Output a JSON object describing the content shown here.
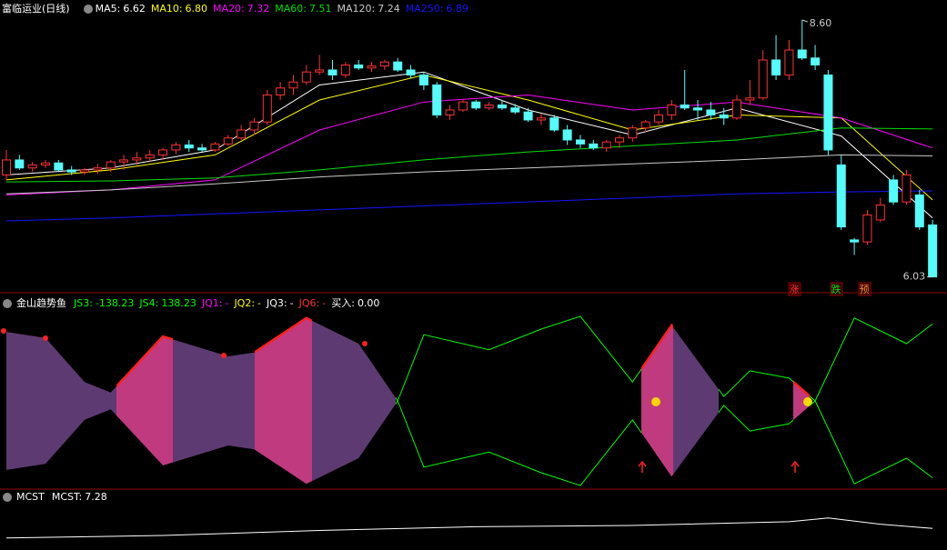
{
  "chart_data": [
    {
      "type": "candlestick",
      "title": "富临运业(日线)",
      "ylim": [
        5.89,
        8.8
      ],
      "up_color": "#ff3232",
      "down_color": "#54fcfc",
      "candles": [
        [
          7.05,
          7.3,
          7.0,
          7.2
        ],
        [
          7.2,
          7.25,
          7.1,
          7.12
        ],
        [
          7.12,
          7.18,
          7.08,
          7.15
        ],
        [
          7.15,
          7.2,
          7.12,
          7.17
        ],
        [
          7.17,
          7.2,
          7.08,
          7.1
        ],
        [
          7.1,
          7.14,
          7.05,
          7.08
        ],
        [
          7.08,
          7.12,
          7.05,
          7.1
        ],
        [
          7.1,
          7.16,
          7.06,
          7.12
        ],
        [
          7.12,
          7.2,
          7.08,
          7.18
        ],
        [
          7.18,
          7.25,
          7.1,
          7.2
        ],
        [
          7.2,
          7.28,
          7.15,
          7.22
        ],
        [
          7.22,
          7.3,
          7.18,
          7.25
        ],
        [
          7.25,
          7.32,
          7.2,
          7.3
        ],
        [
          7.3,
          7.38,
          7.26,
          7.35
        ],
        [
          7.35,
          7.4,
          7.28,
          7.32
        ],
        [
          7.32,
          7.36,
          7.28,
          7.3
        ],
        [
          7.3,
          7.38,
          7.28,
          7.36
        ],
        [
          7.36,
          7.45,
          7.34,
          7.42
        ],
        [
          7.42,
          7.55,
          7.4,
          7.5
        ],
        [
          7.5,
          7.62,
          7.45,
          7.58
        ],
        [
          7.58,
          7.9,
          7.55,
          7.85
        ],
        [
          7.85,
          7.98,
          7.8,
          7.92
        ],
        [
          7.92,
          8.05,
          7.85,
          7.98
        ],
        [
          7.98,
          8.15,
          7.95,
          8.08
        ],
        [
          8.08,
          8.25,
          8.05,
          8.1
        ],
        [
          8.1,
          8.2,
          8.0,
          8.05
        ],
        [
          8.05,
          8.18,
          8.02,
          8.15
        ],
        [
          8.15,
          8.2,
          8.1,
          8.12
        ],
        [
          8.12,
          8.18,
          8.08,
          8.14
        ],
        [
          8.14,
          8.2,
          8.1,
          8.18
        ],
        [
          8.18,
          8.22,
          8.08,
          8.1
        ],
        [
          8.1,
          8.15,
          8.02,
          8.05
        ],
        [
          8.05,
          8.08,
          7.9,
          7.95
        ],
        [
          7.95,
          7.98,
          7.62,
          7.65
        ],
        [
          7.65,
          7.75,
          7.6,
          7.7
        ],
        [
          7.7,
          7.8,
          7.68,
          7.78
        ],
        [
          7.78,
          7.8,
          7.7,
          7.72
        ],
        [
          7.72,
          7.78,
          7.7,
          7.75
        ],
        [
          7.75,
          7.8,
          7.7,
          7.72
        ],
        [
          7.72,
          7.76,
          7.66,
          7.68
        ],
        [
          7.68,
          7.72,
          7.58,
          7.6
        ],
        [
          7.6,
          7.66,
          7.55,
          7.62
        ],
        [
          7.62,
          7.65,
          7.48,
          7.5
        ],
        [
          7.5,
          7.55,
          7.35,
          7.4
        ],
        [
          7.4,
          7.45,
          7.32,
          7.36
        ],
        [
          7.36,
          7.4,
          7.3,
          7.32
        ],
        [
          7.32,
          7.4,
          7.28,
          7.38
        ],
        [
          7.38,
          7.45,
          7.32,
          7.42
        ],
        [
          7.42,
          7.55,
          7.38,
          7.52
        ],
        [
          7.52,
          7.6,
          7.48,
          7.58
        ],
        [
          7.58,
          7.7,
          7.55,
          7.65
        ],
        [
          7.65,
          7.8,
          7.6,
          7.75
        ],
        [
          7.75,
          8.1,
          7.7,
          7.72
        ],
        [
          7.72,
          7.8,
          7.6,
          7.7
        ],
        [
          7.7,
          7.78,
          7.6,
          7.65
        ],
        [
          7.65,
          7.72,
          7.55,
          7.62
        ],
        [
          7.62,
          7.85,
          7.6,
          7.8
        ],
        [
          7.8,
          8.0,
          7.75,
          7.82
        ],
        [
          7.82,
          8.3,
          7.8,
          8.2
        ],
        [
          8.2,
          8.45,
          8.0,
          8.05
        ],
        [
          8.05,
          8.4,
          8.0,
          8.3
        ],
        [
          8.3,
          8.6,
          8.2,
          8.22
        ],
        [
          8.22,
          8.35,
          8.1,
          8.15
        ],
        [
          8.05,
          8.1,
          7.25,
          7.3
        ],
        [
          7.15,
          7.25,
          6.5,
          6.53
        ],
        [
          6.4,
          6.42,
          6.25,
          6.38
        ],
        [
          6.38,
          6.7,
          6.35,
          6.65
        ],
        [
          6.6,
          6.82,
          6.58,
          6.75
        ],
        [
          7.0,
          7.05,
          6.75,
          6.78
        ],
        [
          6.78,
          7.1,
          6.75,
          7.05
        ],
        [
          6.85,
          6.9,
          6.5,
          6.53
        ],
        [
          6.55,
          6.6,
          6.03,
          6.03
        ]
      ],
      "series": [
        {
          "name": "MA5:",
          "color": "#ffffff",
          "x": [
            0,
            8,
            16,
            24,
            32,
            40,
            48,
            56,
            64,
            71
          ],
          "values": [
            7.05,
            7.12,
            7.3,
            7.95,
            8.08,
            7.7,
            7.45,
            7.72,
            7.44,
            6.62
          ]
        },
        {
          "name": "MA10:",
          "color": "#ffff00",
          "x": [
            0,
            8,
            16,
            24,
            32,
            40,
            48,
            56,
            64,
            71
          ],
          "values": [
            7.0,
            7.1,
            7.25,
            7.8,
            8.05,
            7.8,
            7.5,
            7.65,
            7.62,
            6.8
          ],
          "value_labels": [
            null,
            null,
            null,
            null,
            null,
            null,
            null,
            null,
            null,
            "6.80"
          ]
        },
        {
          "name": "MA20:",
          "color": "#ff00ff",
          "x": [
            0,
            8,
            16,
            24,
            32,
            40,
            48,
            56,
            64,
            71
          ],
          "values": [
            6.85,
            6.9,
            7.0,
            7.5,
            7.78,
            7.85,
            7.7,
            7.78,
            7.62,
            7.32
          ]
        },
        {
          "name": "MA60:",
          "color": "#00e000",
          "x": [
            0,
            8,
            16,
            24,
            32,
            40,
            48,
            56,
            64,
            71
          ],
          "values": [
            6.98,
            6.99,
            7.02,
            7.1,
            7.2,
            7.28,
            7.34,
            7.4,
            7.52,
            7.51
          ]
        },
        {
          "name": "MA120:",
          "color": "#c8c8c8",
          "x": [
            0,
            8,
            16,
            24,
            32,
            40,
            48,
            56,
            64,
            71
          ],
          "values": [
            6.86,
            6.9,
            6.96,
            7.03,
            7.08,
            7.12,
            7.16,
            7.2,
            7.25,
            7.24
          ]
        },
        {
          "name": "MA250:",
          "color": "#1414ff",
          "x": [
            0,
            8,
            16,
            24,
            32,
            40,
            48,
            56,
            64,
            71
          ],
          "values": [
            6.59,
            6.62,
            6.66,
            6.7,
            6.74,
            6.78,
            6.82,
            6.86,
            6.88,
            6.89
          ]
        }
      ],
      "annotations": [
        {
          "value": 8.6,
          "label": "8.60"
        },
        6.03
      ],
      "markers": [
        "涨",
        "跌",
        "预"
      ]
    },
    {
      "type": "fish",
      "title": "金山趋势鱼",
      "ylim": [
        -165,
        165
      ],
      "series": [
        {
          "name": "JS3:",
          "color": "#00ff00",
          "x": [
            0,
            3,
            6,
            8,
            12,
            17,
            19,
            23,
            27,
            30,
            32,
            37,
            41,
            44,
            48,
            51,
            55,
            57,
            60,
            62,
            65,
            69,
            71
          ],
          "values": [
            -124,
            -113,
            -34,
            -15,
            -116,
            -80,
            -87,
            -149,
            -103,
            0,
            -119,
            -92,
            -129,
            -152,
            -34,
            -136,
            -8,
            -54,
            -41,
            0,
            -149,
            -103,
            -138.23
          ]
        },
        {
          "name": "JS4:",
          "color": "#00ff00",
          "x": [
            0,
            3,
            6,
            8,
            12,
            17,
            19,
            23,
            27,
            30,
            32,
            37,
            41,
            44,
            48,
            51,
            55,
            57,
            60,
            62,
            65,
            69,
            71
          ],
          "values": [
            124,
            113,
            34,
            15,
            116,
            80,
            87,
            149,
            103,
            0,
            119,
            92,
            129,
            152,
            34,
            136,
            8,
            54,
            41,
            0,
            149,
            103,
            138.23
          ]
        }
      ],
      "items": [
        {
          "label": "JQ1:",
          "value": "-",
          "color": "#ff00ff"
        },
        {
          "label": "JQ2:",
          "value": "-",
          "color": "#ffff00"
        },
        {
          "label": "JQ3:",
          "value": "-",
          "color": "#ffffff"
        },
        {
          "label": "JQ6:",
          "value": "-",
          "color": "#ff3232"
        },
        {
          "label": "买入:",
          "value": 0,
          "value_label": "0.00",
          "color": "#ffffff"
        }
      ]
    },
    {
      "type": "line",
      "title": "MCST",
      "ylim": [
        6.6,
        8.6
      ],
      "series": [
        {
          "name": "MCST:",
          "color": "#ffffff",
          "x": [
            0,
            12,
            24,
            36,
            48,
            60,
            63,
            67,
            71
          ],
          "values": [
            6.9,
            7.0,
            7.2,
            7.35,
            7.4,
            7.55,
            7.7,
            7.45,
            7.28
          ]
        }
      ]
    }
  ]
}
